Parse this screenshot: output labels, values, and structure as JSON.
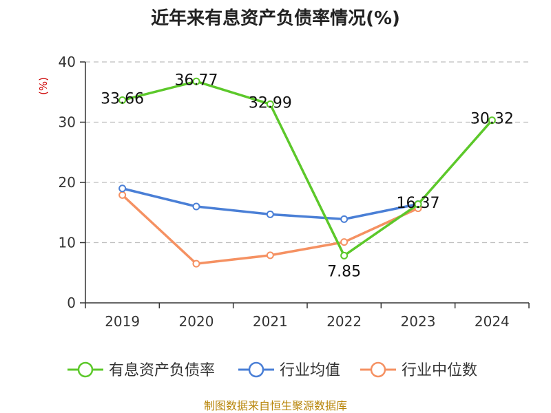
{
  "chart_data": {
    "type": "line",
    "title": "近年来有息资产负债率情况(%)",
    "ylabel": "(%)",
    "xlabel": "",
    "categories": [
      "2019",
      "2020",
      "2021",
      "2022",
      "2023",
      "2024"
    ],
    "ylim": [
      0,
      40
    ],
    "yticks": [
      "0",
      "10",
      "20",
      "30",
      "40"
    ],
    "grid": "horizontal-dashed",
    "legend_position": "bottom",
    "series": [
      {
        "name": "有息资产负债率",
        "color": "#5cc82a",
        "values": [
          33.66,
          36.77,
          32.99,
          7.85,
          16.37,
          30.32
        ],
        "labels": [
          "33.66",
          "36.77",
          "32.99",
          "7.85",
          "16.37",
          "30.32"
        ]
      },
      {
        "name": "行业均值",
        "color": "#4a7fd6",
        "values": [
          19.0,
          16.0,
          14.7,
          13.9,
          16.4,
          null
        ]
      },
      {
        "name": "行业中位数",
        "color": "#f59162",
        "values": [
          17.9,
          6.5,
          7.9,
          10.1,
          15.7,
          null
        ]
      }
    ]
  },
  "source": "制图数据来自恒生聚源数据库"
}
